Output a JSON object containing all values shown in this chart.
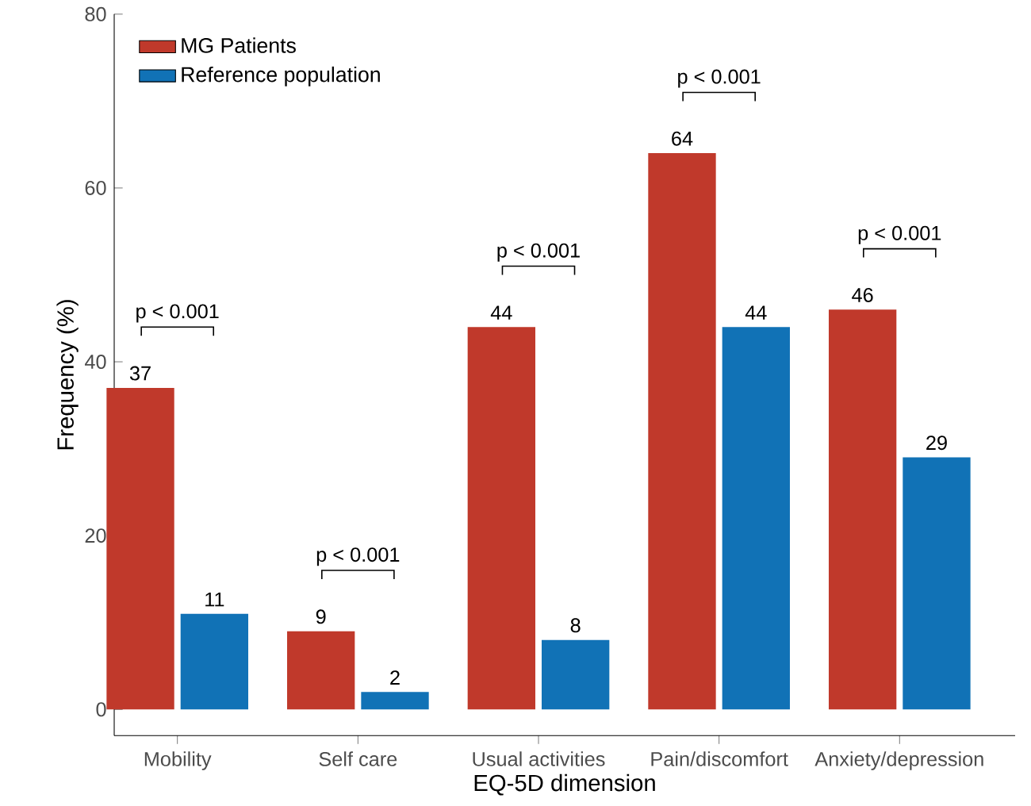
{
  "chart_data": {
    "type": "bar",
    "xlabel": "EQ-5D dimension",
    "ylabel": "Frequency (%)",
    "categories": [
      "Mobility",
      "Self care",
      "Usual activities",
      "Pain/discomfort",
      "Anxiety/depression"
    ],
    "series": [
      {
        "name": "MG Patients",
        "color": "#c0392b",
        "values": [
          37,
          9,
          44,
          64,
          46
        ]
      },
      {
        "name": "Reference population",
        "color": "#1172b6",
        "values": [
          11,
          2,
          8,
          44,
          29
        ]
      }
    ],
    "ylim": [
      -3,
      80
    ],
    "yticks": [
      0,
      20,
      40,
      60,
      80
    ],
    "grid": false,
    "legend": "top left",
    "data_labels": true,
    "annotations": [
      "p < 0.001",
      "p < 0.001",
      "p < 0.001",
      "p < 0.001",
      "p < 0.001"
    ]
  }
}
